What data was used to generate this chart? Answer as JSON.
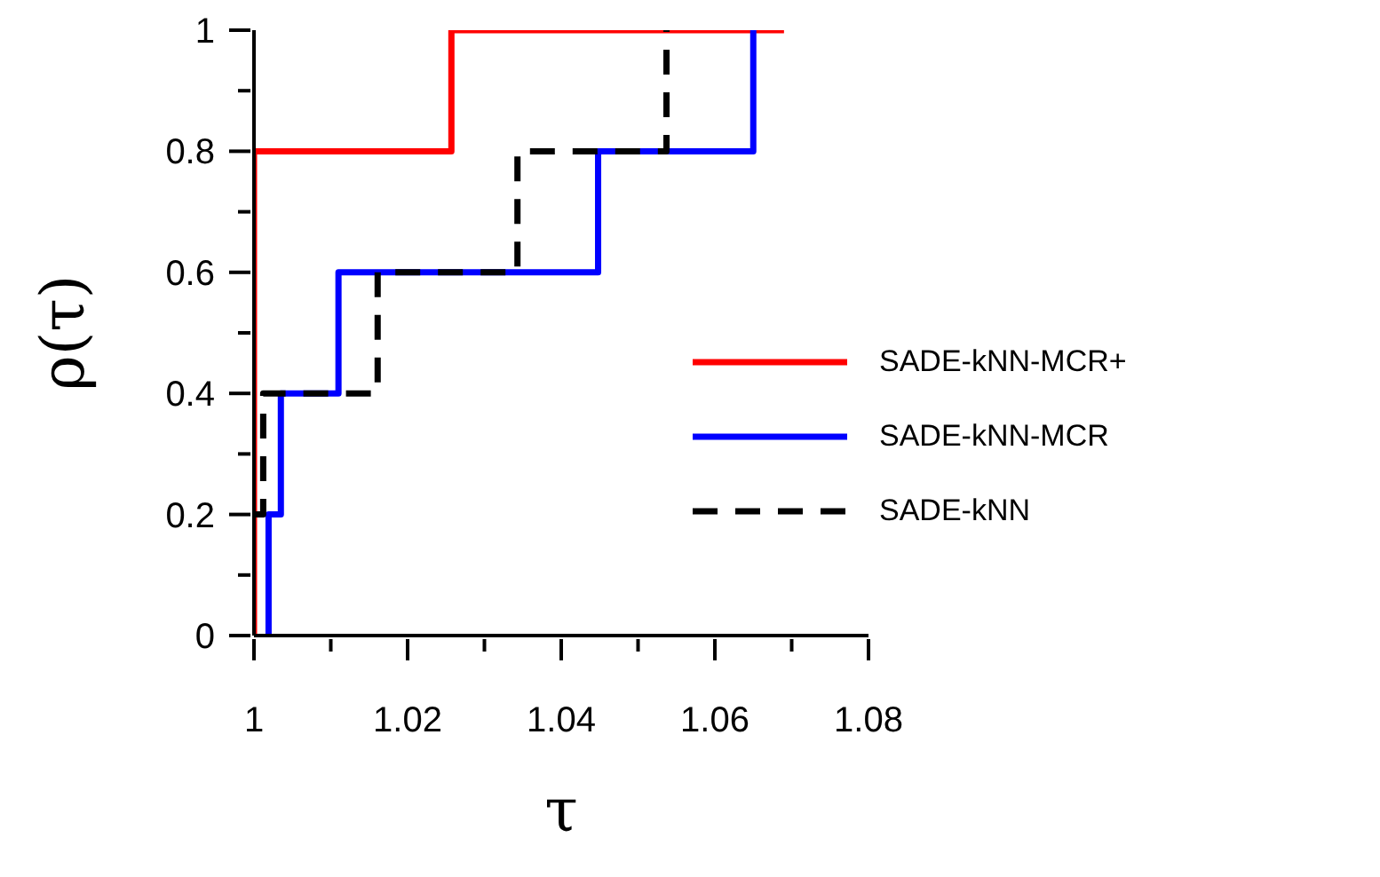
{
  "chart_data": {
    "type": "step",
    "xlabel": "τ",
    "ylabel": "ρ(τ)",
    "xlim": [
      1,
      1.08
    ],
    "xticks": [
      1,
      {
        "value": 1.01,
        "label": null
      },
      1.02,
      {
        "value": 1.03,
        "label": null
      },
      1.04,
      {
        "value": 1.05,
        "label": null
      },
      1.06,
      {
        "value": 1.07,
        "label": null
      },
      1.08
    ],
    "ylim": [
      0,
      1
    ],
    "yticks": [
      0,
      {
        "value": 0.1,
        "label": null
      },
      0.2,
      {
        "value": 0.3,
        "label": null
      },
      0.4,
      {
        "value": 0.5,
        "label": null
      },
      0.6,
      {
        "value": 0.7,
        "label": null
      },
      0.8,
      {
        "value": 0.9,
        "label": null
      },
      1
    ],
    "legend": "right",
    "marker": "none",
    "series": [
      {
        "name": "SADE-kNN-MCR+",
        "color": "#ff0000",
        "line_style": "solid",
        "x": [
          1,
          1,
          1.0257,
          1.069
        ],
        "values": [
          0,
          0.8,
          1,
          1
        ]
      },
      {
        "name": "SADE-kNN-MCR",
        "color": "#0000ff",
        "line_style": "solid",
        "x": [
          1.0019,
          1.0019,
          1.0035,
          1.011,
          1.0448,
          1.065
        ],
        "values": [
          0,
          0.2,
          0.4,
          0.6,
          0.8,
          1
        ]
      },
      {
        "name": "SADE-kNN",
        "color": "#000000",
        "line_style": "dashed",
        "x": [
          1,
          1.0012,
          1.0161,
          1.0343,
          1.0537
        ],
        "values": [
          0.2,
          0.4,
          0.6,
          0.8,
          1
        ]
      }
    ]
  }
}
